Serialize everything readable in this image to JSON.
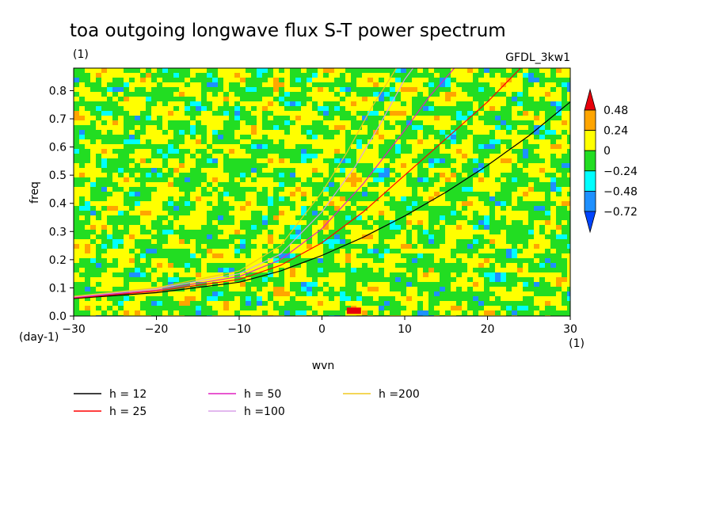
{
  "chart_data": {
    "type": "heatmap",
    "title": "toa outgoing longwave flux S-T power spectrum",
    "subtitle_left": "(1)",
    "subtitle_right": "GFDL_3kw1",
    "xlabel": "wvn",
    "ylabel": "freq",
    "x_unit": "(1)",
    "y_unit": "(day-1)",
    "xlim": [
      -30,
      30
    ],
    "ylim": [
      0,
      0.88
    ],
    "xticks": [
      "−30",
      "−20",
      "−10",
      "0",
      "10",
      "20",
      "30"
    ],
    "yticks": [
      "0.0",
      "0.1",
      "0.2",
      "0.3",
      "0.4",
      "0.5",
      "0.6",
      "0.7",
      "0.8"
    ],
    "colorbar": {
      "labels": [
        "0.48",
        "0.24",
        "0",
        "−0.24",
        "−0.48",
        "−0.72"
      ],
      "colors": [
        "#e8000b",
        "#ffa500",
        "#ffff00",
        "#22dd22",
        "#00ffff",
        "#1e90ff",
        "#0044ff"
      ]
    },
    "dispersion_curves": [
      {
        "name": "h = 12",
        "color": "#000000",
        "points": [
          [
            -30,
            0.062
          ],
          [
            -20,
            0.083
          ],
          [
            -10,
            0.12
          ],
          [
            -5,
            0.16
          ],
          [
            0,
            0.215
          ],
          [
            5,
            0.28
          ],
          [
            10,
            0.355
          ],
          [
            15,
            0.44
          ],
          [
            20,
            0.535
          ],
          [
            25,
            0.64
          ],
          [
            30,
            0.76
          ]
        ]
      },
      {
        "name": "h = 25",
        "color": "#ff0000",
        "points": [
          [
            -30,
            0.064
          ],
          [
            -20,
            0.088
          ],
          [
            -10,
            0.13
          ],
          [
            -5,
            0.18
          ],
          [
            0,
            0.26
          ],
          [
            5,
            0.37
          ],
          [
            10,
            0.5
          ],
          [
            15,
            0.63
          ],
          [
            20,
            0.76
          ],
          [
            24,
            0.88
          ]
        ]
      },
      {
        "name": "h = 50",
        "color": "#e020c0",
        "points": [
          [
            -30,
            0.066
          ],
          [
            -20,
            0.092
          ],
          [
            -10,
            0.14
          ],
          [
            -5,
            0.2
          ],
          [
            0,
            0.31
          ],
          [
            5,
            0.47
          ],
          [
            10,
            0.66
          ],
          [
            13,
            0.78
          ],
          [
            16,
            0.88
          ]
        ]
      },
      {
        "name": "h =100",
        "color": "#d8a0e8",
        "points": [
          [
            -30,
            0.068
          ],
          [
            -20,
            0.097
          ],
          [
            -10,
            0.15
          ],
          [
            -5,
            0.22
          ],
          [
            0,
            0.37
          ],
          [
            4,
            0.53
          ],
          [
            7,
            0.68
          ],
          [
            10,
            0.84
          ],
          [
            11,
            0.88
          ]
        ]
      },
      {
        "name": "h =200",
        "color": "#f0c820",
        "points": [
          [
            -30,
            0.07
          ],
          [
            -20,
            0.1
          ],
          [
            -10,
            0.16
          ],
          [
            -5,
            0.25
          ],
          [
            0,
            0.44
          ],
          [
            3,
            0.58
          ],
          [
            6,
            0.74
          ],
          [
            9,
            0.88
          ]
        ]
      }
    ]
  }
}
